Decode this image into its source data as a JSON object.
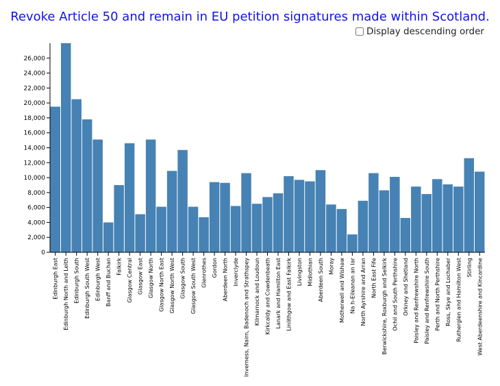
{
  "title": "Revoke Article 50 and remain in EU petition signatures made within Scotland.",
  "sort_label": "Display descending order",
  "colors": {
    "bar": "#4682b4",
    "title": "#1212e6"
  },
  "chart_data": {
    "type": "bar",
    "title": "Revoke Article 50 and remain in EU petition signatures made within Scotland.",
    "xlabel": "",
    "ylabel": "",
    "ylim": [
      0,
      28000
    ],
    "yticks": [
      0,
      2000,
      4000,
      6000,
      8000,
      10000,
      12000,
      14000,
      16000,
      18000,
      20000,
      22000,
      24000,
      26000
    ],
    "ytick_labels": [
      "0",
      "2,000",
      "4,000",
      "6,000",
      "8,000",
      "10,000",
      "12,000",
      "14,000",
      "16,000",
      "18,000",
      "20,000",
      "22,000",
      "24,000",
      "26,000"
    ],
    "categories": [
      "Edinburgh East",
      "Edinburgh North and Leith",
      "Edinburgh South",
      "Edinburgh South West",
      "Edinburgh West",
      "Banff and Buchan",
      "Falkirk",
      "Glasgow Central",
      "Glasgow East",
      "Glasgow North",
      "Glasgow North East",
      "Glasgow North West",
      "Glasgow South",
      "Glasgow South West",
      "Glenrothes",
      "Gordon",
      "Aberdeen North",
      "Inverclyde",
      "Inverness, Nairn, Badenoch and Strathspey",
      "Kilmarnock and Loudoun",
      "Kirkcaldy and Cowdenbeath",
      "Lanark and Hamilton East",
      "Linlithgow and East Falkirk",
      "Livingston",
      "Midlothian",
      "Aberdeen South",
      "Moray",
      "Motherwell and Wishaw",
      "Na h-Eileanan an Iar",
      "North Ayrshire and Arran",
      "North East Fife",
      "Berwickshire, Roxburgh and Selkirk",
      "Ochil and South Perthshire",
      "Orkney and Shetland",
      "Paisley and Renfrewshire North",
      "Paisley and Renfrewshire South",
      "Perth and North Perthshire",
      "Ross, Skye and Lochaber",
      "Rutherglen and Hamilton West",
      "Stirling",
      "West Aberdeenshire and Kincardine"
    ],
    "values": [
      19500,
      28000,
      20500,
      17800,
      15100,
      4000,
      9000,
      14600,
      5100,
      15100,
      6100,
      10900,
      13700,
      6100,
      4700,
      9400,
      9300,
      6200,
      10600,
      6500,
      7400,
      7900,
      10200,
      9700,
      9500,
      11000,
      6400,
      5800,
      2400,
      6900,
      10600,
      8300,
      10100,
      4600,
      8800,
      7800,
      9800,
      9100,
      8800,
      12600,
      10800
    ]
  }
}
